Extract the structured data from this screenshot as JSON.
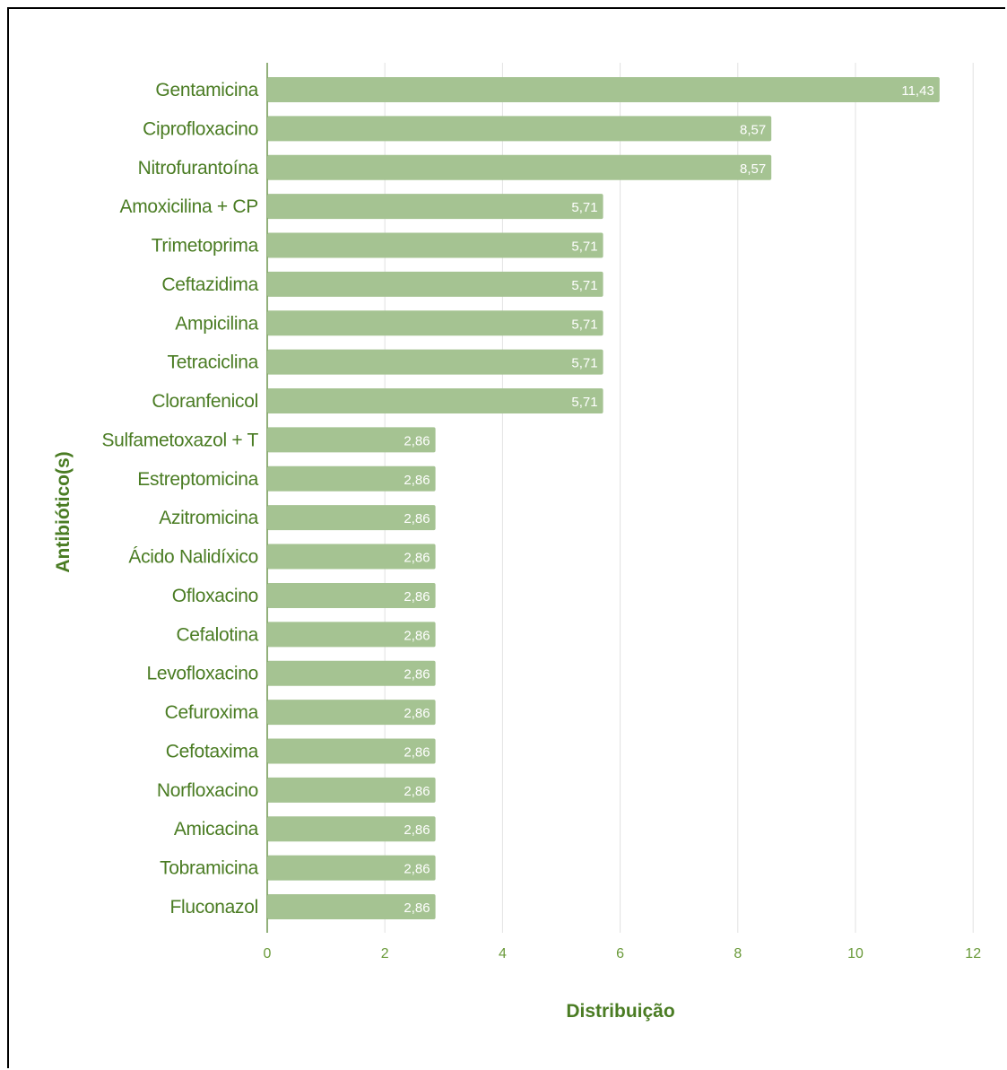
{
  "colors": {
    "bar": "#a5c392",
    "grid": "#e2e2e2",
    "axis": "#4a7c23",
    "text": "#4a7c23",
    "value_text": "#ffffff"
  },
  "chart_data": {
    "type": "bar",
    "orientation": "horizontal",
    "title": "",
    "xlabel": "Distribuição",
    "ylabel": "Antibiótico(s)",
    "xlim": [
      0,
      12
    ],
    "xticks": [
      "0",
      "2",
      "4",
      "6",
      "8",
      "10",
      "12"
    ],
    "grid": true,
    "legend": "none",
    "categories": [
      "Gentamicina",
      "Ciprofloxacino",
      "Nitrofurantoína",
      "Amoxicilina + CP",
      "Trimetoprima",
      "Ceftazidima",
      "Ampicilina",
      "Tetraciclina",
      "Cloranfenicol",
      "Sulfametoxazol + T",
      "Estreptomicina",
      "Azitromicina",
      "Ácido Nalidíxico",
      "Ofloxacino",
      "Cefalotina",
      "Levofloxacino",
      "Cefuroxima",
      "Cefotaxima",
      "Norfloxacino",
      "Amicacina",
      "Tobramicina",
      "Fluconazol"
    ],
    "values": [
      11.43,
      8.57,
      8.57,
      5.71,
      5.71,
      5.71,
      5.71,
      5.71,
      5.71,
      2.86,
      2.86,
      2.86,
      2.86,
      2.86,
      2.86,
      2.86,
      2.86,
      2.86,
      2.86,
      2.86,
      2.86,
      2.86
    ],
    "value_labels": [
      "11,43",
      "8,57",
      "8,57",
      "5,71",
      "5,71",
      "5,71",
      "5,71",
      "5,71",
      "5,71",
      "2,86",
      "2,86",
      "2,86",
      "2,86",
      "2,86",
      "2,86",
      "2,86",
      "2,86",
      "2,86",
      "2,86",
      "2,86",
      "2,86",
      "2,86"
    ]
  }
}
